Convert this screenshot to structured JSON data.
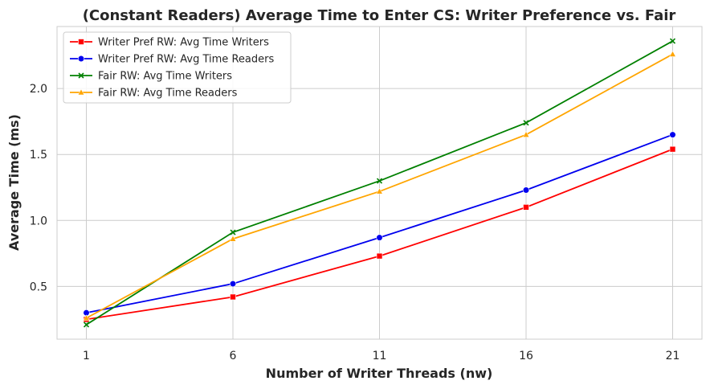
{
  "chart_data": {
    "type": "line",
    "title": "(Constant Readers) Average Time to Enter CS: Writer Preference vs. Fair",
    "xlabel": "Number of Writer Threads (nw)",
    "ylabel": "Average Time (ms)",
    "x": [
      1,
      6,
      11,
      16,
      21
    ],
    "xlim": [
      0,
      22
    ],
    "ylim": [
      0.1,
      2.47
    ],
    "xticks": [
      1,
      6,
      11,
      16,
      21
    ],
    "yticks": [
      0.5,
      1.0,
      1.5,
      2.0
    ],
    "ytick_labels": [
      "0.5",
      "1.0",
      "1.5",
      "2.0"
    ],
    "grid": true,
    "legend_position": "top-left",
    "series": [
      {
        "name": "Writer Pref RW: Avg Time Writers",
        "color": "#ff0000",
        "marker": "square",
        "values": [
          0.25,
          0.42,
          0.73,
          1.1,
          1.54
        ]
      },
      {
        "name": "Writer Pref RW: Avg Time Readers",
        "color": "#0000ee",
        "marker": "circle",
        "values": [
          0.3,
          0.52,
          0.87,
          1.23,
          1.65
        ]
      },
      {
        "name": "Fair RW: Avg Time Writers",
        "color": "#008000",
        "marker": "x",
        "values": [
          0.21,
          0.91,
          1.3,
          1.74,
          2.36
        ]
      },
      {
        "name": "Fair RW: Avg Time Readers",
        "color": "#ffa500",
        "marker": "triangle",
        "values": [
          0.26,
          0.86,
          1.22,
          1.65,
          2.26
        ]
      }
    ]
  }
}
